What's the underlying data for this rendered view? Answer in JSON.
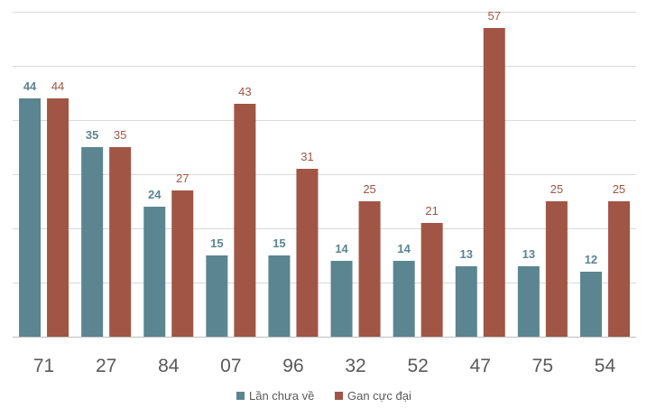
{
  "chart_data": {
    "type": "bar",
    "title": "",
    "xlabel": "",
    "ylabel": "",
    "ylim": [
      0,
      60
    ],
    "grid": true,
    "legend_position": "bottom-center",
    "categories": [
      "71",
      "27",
      "84",
      "07",
      "96",
      "32",
      "52",
      "47",
      "75",
      "54"
    ],
    "series": [
      {
        "name": "Lần chưa về",
        "color": "#5B8590",
        "values": [
          44,
          35,
          24,
          15,
          15,
          14,
          14,
          13,
          13,
          12
        ]
      },
      {
        "name": "Gan cực đại",
        "color": "#A05545",
        "values": [
          44,
          35,
          27,
          43,
          31,
          25,
          21,
          57,
          25,
          25
        ]
      }
    ]
  }
}
